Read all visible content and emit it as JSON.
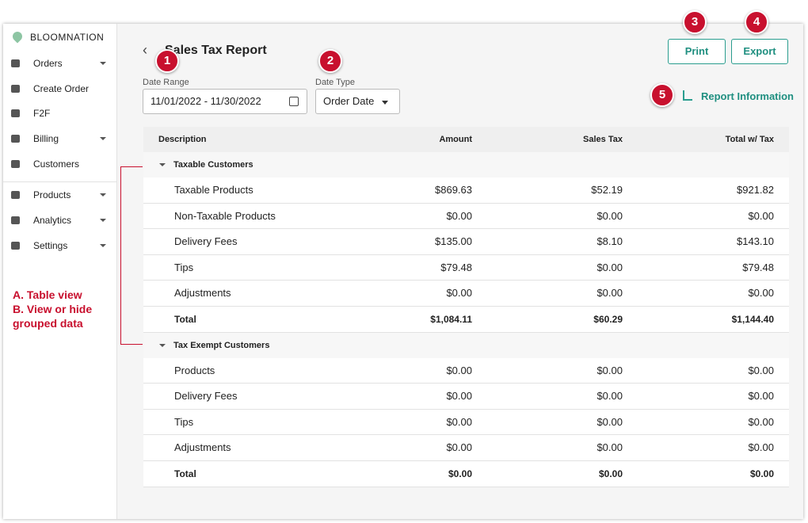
{
  "sidebar": {
    "brand": "BLOOMNATION",
    "items": [
      {
        "label": "Orders"
      },
      {
        "label": "Create Order"
      },
      {
        "label": "F2F"
      },
      {
        "label": "Billing"
      },
      {
        "label": "Customers"
      },
      {
        "label": "Products"
      },
      {
        "label": "Analytics"
      },
      {
        "label": "Settings"
      }
    ]
  },
  "annotation": [
    "A. Table view",
    "B. View or hide",
    "grouped data"
  ],
  "header": {
    "title": "Sales Tax Report"
  },
  "badges": [
    "1",
    "2",
    "3",
    "4",
    "5"
  ],
  "filters": {
    "date_range": {
      "label": "Date Range",
      "value": "11/01/2022 - 11/30/2022"
    },
    "date_type": {
      "label": "Date Type",
      "value": "Order Date"
    }
  },
  "buttons": {
    "print": "Print",
    "export": "Export",
    "report_info": "Report Information"
  },
  "table": {
    "columns": [
      "Description",
      "Amount",
      "Sales Tax",
      "Total w/ Tax"
    ],
    "groups": [
      {
        "name": "Taxable Customers",
        "rows": [
          [
            "Taxable Products",
            "$869.63",
            "$52.19",
            "$921.82"
          ],
          [
            "Non-Taxable Products",
            "$0.00",
            "$0.00",
            "$0.00"
          ],
          [
            "Delivery Fees",
            "$135.00",
            "$8.10",
            "$143.10"
          ],
          [
            "Tips",
            "$79.48",
            "$0.00",
            "$79.48"
          ],
          [
            "Adjustments",
            "$0.00",
            "$0.00",
            "$0.00"
          ],
          [
            "Total",
            "$1,084.11",
            "$60.29",
            "$1,144.40"
          ]
        ]
      },
      {
        "name": "Tax Exempt Customers",
        "rows": [
          [
            "Products",
            "$0.00",
            "$0.00",
            "$0.00"
          ],
          [
            "Delivery Fees",
            "$0.00",
            "$0.00",
            "$0.00"
          ],
          [
            "Tips",
            "$0.00",
            "$0.00",
            "$0.00"
          ],
          [
            "Adjustments",
            "$0.00",
            "$0.00",
            "$0.00"
          ],
          [
            "Total",
            "$0.00",
            "$0.00",
            "$0.00"
          ]
        ]
      }
    ]
  }
}
